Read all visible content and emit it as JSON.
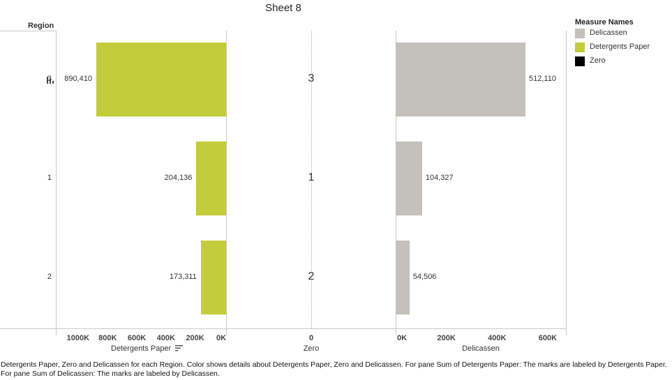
{
  "title": "Sheet 8",
  "row_header": "Region",
  "legend": {
    "title": "Measure Names",
    "items": [
      {
        "label": "Delicassen",
        "color": "#c4c0bc"
      },
      {
        "label": "Detergents Paper",
        "color": "#c3cc3a"
      },
      {
        "label": "Zero",
        "color": "#000000"
      }
    ]
  },
  "colors": {
    "detergents": "#c3cc3a",
    "delicassen": "#c4c0bc",
    "grid": "#c8c8c8"
  },
  "icons": {
    "sort_row": "bar-sort-icon",
    "sort_axis": "sort-descending-icon"
  },
  "chart_data": {
    "type": "bar",
    "orientation": "horizontal",
    "categories": [
      "3",
      "1",
      "2"
    ],
    "series": [
      {
        "name": "Detergents Paper",
        "values": [
          890410,
          204136,
          173311
        ],
        "labels": [
          "890,410",
          "204,136",
          "173,311"
        ]
      },
      {
        "name": "Zero",
        "values": [
          3,
          1,
          2
        ],
        "labels": [
          "3",
          "1",
          "2"
        ]
      },
      {
        "name": "Delicassen",
        "values": [
          512110,
          104327,
          54506
        ],
        "labels": [
          "512,110",
          "104,327",
          "54,506"
        ]
      }
    ],
    "axes": [
      {
        "title": "Detergents Paper",
        "reversed": true,
        "range": [
          0,
          1150000
        ],
        "ticks": [
          {
            "value": 1000000,
            "label": "1000K"
          },
          {
            "value": 800000,
            "label": "800K"
          },
          {
            "value": 600000,
            "label": "600K"
          },
          {
            "value": 400000,
            "label": "400K"
          },
          {
            "value": 200000,
            "label": "200K"
          },
          {
            "value": 0,
            "label": "0K"
          }
        ]
      },
      {
        "title": "Zero",
        "ticks": [
          {
            "value": 0,
            "label": "0"
          }
        ]
      },
      {
        "title": "Delicassen",
        "range": [
          0,
          670000
        ],
        "ticks": [
          {
            "value": 0,
            "label": "0K"
          },
          {
            "value": 200000,
            "label": "200K"
          },
          {
            "value": 400000,
            "label": "400K"
          },
          {
            "value": 600000,
            "label": "600K"
          }
        ]
      }
    ]
  },
  "caption": "Detergents Paper, Zero and Delicassen for each Region.  Color shows details about Detergents Paper, Zero and Delicassen.  For pane Sum of Detergents Paper: The marks are labeled by Detergents Paper.  For pane Sum of Delicassen:  The marks are labeled by Delicassen."
}
